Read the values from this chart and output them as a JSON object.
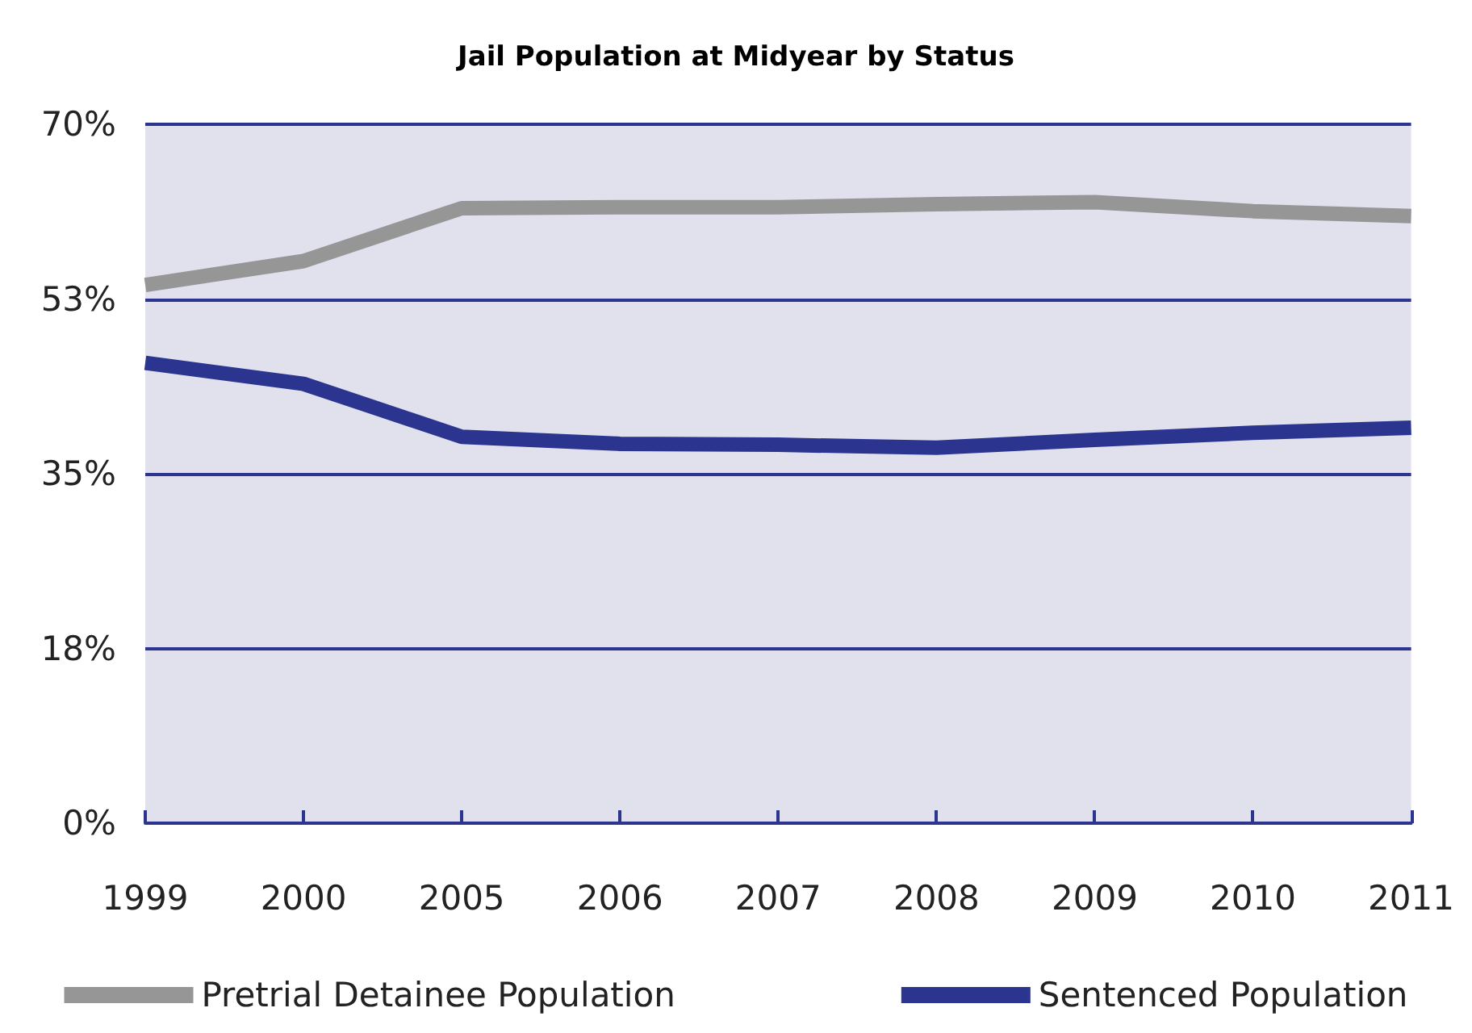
{
  "chart_data": {
    "type": "line",
    "title": "Jail Population at Midyear by Status",
    "categories": [
      "1999",
      "2000",
      "2005",
      "2006",
      "2007",
      "2008",
      "2009",
      "2010",
      "2011"
    ],
    "series": [
      {
        "name": "Pretrial Detainee Population",
        "color": "#969696",
        "values": [
          53.9,
          56.3,
          61.6,
          61.7,
          61.7,
          62.0,
          62.2,
          61.3,
          60.8
        ]
      },
      {
        "name": "Sentenced Population",
        "color": "#2b3590",
        "values": [
          46.1,
          44.0,
          38.7,
          38.0,
          37.9,
          37.6,
          38.4,
          39.1,
          39.6
        ]
      }
    ],
    "ylim": [
      0,
      70
    ],
    "yticks": [
      {
        "value": 0,
        "label": "0%"
      },
      {
        "value": 17.5,
        "label": "18%"
      },
      {
        "value": 35,
        "label": "35%"
      },
      {
        "value": 52.5,
        "label": "53%"
      },
      {
        "value": 70,
        "label": "70%"
      }
    ],
    "grid": "y",
    "legend": "bottom",
    "marker": "none",
    "line_style": "solid"
  }
}
